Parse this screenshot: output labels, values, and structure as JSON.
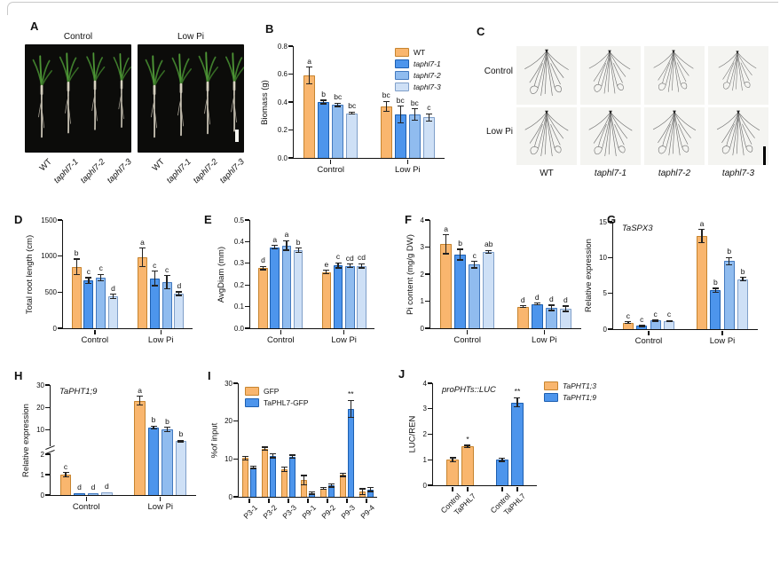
{
  "panels": {
    "a": {
      "label": "A",
      "titles": [
        "Control",
        "Low Pi"
      ],
      "x_labels": [
        "WT",
        "taphl7-1",
        "taphl7-2",
        "taphl7-3"
      ]
    },
    "b": {
      "label": "B"
    },
    "c": {
      "label": "C",
      "row_labels": [
        "Control",
        "Low Pi"
      ],
      "col_labels": [
        "WT",
        "taphl7-1",
        "taphl7-2",
        "taphl7-3"
      ]
    },
    "d": {
      "label": "D"
    },
    "e": {
      "label": "E"
    },
    "f": {
      "label": "F"
    },
    "g": {
      "label": "G"
    },
    "h": {
      "label": "H"
    },
    "i": {
      "label": "I"
    },
    "j": {
      "label": "J"
    }
  },
  "colors": {
    "series": [
      {
        "name": "WT-orange",
        "fill": "#F9B66E",
        "edge": "#C6842F"
      },
      {
        "name": "blue-dark",
        "fill": "#4D95EC",
        "edge": "#1D5FB0"
      },
      {
        "name": "blue-mid",
        "fill": "#90BCEF",
        "edge": "#4379BE"
      },
      {
        "name": "blue-light",
        "fill": "#CEE0F6",
        "edge": "#7F9FC9"
      }
    ],
    "error_bar": "#222222",
    "axis": "#111111",
    "photo_bg": "#0C0C0A",
    "scan_bg": "#F4F4F1"
  },
  "chart_data": [
    {
      "id": "B",
      "type": "bar",
      "title": "",
      "ylabel": "Biomass (g)",
      "ylim": [
        0,
        0.8
      ],
      "yticks": [
        0,
        0.2,
        0.4,
        0.6,
        0.8
      ],
      "ytick_labels": [
        "0.0",
        "0.2",
        "0.4",
        "0.6",
        "0.8"
      ],
      "groups": [
        {
          "label": "Control",
          "bars": [
            {
              "v": 0.59,
              "e": 0.06,
              "t": "a",
              "c": 0
            },
            {
              "v": 0.4,
              "e": 0.012,
              "t": "b",
              "c": 1
            },
            {
              "v": 0.38,
              "e": 0.012,
              "t": "bc",
              "c": 2
            },
            {
              "v": 0.32,
              "e": 0.008,
              "t": "bc",
              "c": 3
            }
          ]
        },
        {
          "label": "Low Pi",
          "bars": [
            {
              "v": 0.37,
              "e": 0.035,
              "t": "bc",
              "c": 0
            },
            {
              "v": 0.31,
              "e": 0.06,
              "t": "bc",
              "c": 1
            },
            {
              "v": 0.31,
              "e": 0.04,
              "t": "bc",
              "c": 2
            },
            {
              "v": 0.29,
              "e": 0.025,
              "t": "c",
              "c": 3
            }
          ]
        }
      ],
      "legend": {
        "entries": [
          {
            "label": "WT",
            "c": 0,
            "italic": false
          },
          {
            "label": "taphl7-1",
            "c": 1,
            "italic": true
          },
          {
            "label": "taphl7-2",
            "c": 2,
            "italic": true
          },
          {
            "label": "taphl7-3",
            "c": 3,
            "italic": true
          }
        ]
      }
    },
    {
      "id": "D",
      "type": "bar",
      "title": "",
      "ylabel": "Total root length (cm)",
      "ylim": [
        0,
        1500
      ],
      "yticks": [
        0,
        500,
        1000,
        1500
      ],
      "ytick_labels": [
        "0",
        "500",
        "1000",
        "1500"
      ],
      "groups": [
        {
          "label": "Control",
          "bars": [
            {
              "v": 850,
              "e": 110,
              "t": "b",
              "c": 0
            },
            {
              "v": 660,
              "e": 40,
              "t": "c",
              "c": 1
            },
            {
              "v": 700,
              "e": 45,
              "t": "c",
              "c": 2
            },
            {
              "v": 440,
              "e": 30,
              "t": "d",
              "c": 3
            }
          ]
        },
        {
          "label": "Low Pi",
          "bars": [
            {
              "v": 980,
              "e": 130,
              "t": "a",
              "c": 0
            },
            {
              "v": 690,
              "e": 100,
              "t": "c",
              "c": 1
            },
            {
              "v": 640,
              "e": 90,
              "t": "c",
              "c": 2
            },
            {
              "v": 480,
              "e": 25,
              "t": "d",
              "c": 3
            }
          ]
        }
      ]
    },
    {
      "id": "E",
      "type": "bar",
      "title": "",
      "ylabel": "AvgDiam (mm)",
      "ylim": [
        0,
        0.5
      ],
      "yticks": [
        0,
        0.1,
        0.2,
        0.3,
        0.4,
        0.5
      ],
      "ytick_labels": [
        "0.0",
        "0.1",
        "0.2",
        "0.3",
        "0.4",
        "0.5"
      ],
      "groups": [
        {
          "label": "Control",
          "bars": [
            {
              "v": 0.278,
              "e": 0.008,
              "t": "d",
              "c": 0
            },
            {
              "v": 0.375,
              "e": 0.008,
              "t": "a",
              "c": 1
            },
            {
              "v": 0.382,
              "e": 0.022,
              "t": "a",
              "c": 2
            },
            {
              "v": 0.36,
              "e": 0.01,
              "t": "b",
              "c": 3
            }
          ]
        },
        {
          "label": "Low Pi",
          "bars": [
            {
              "v": 0.26,
              "e": 0.008,
              "t": "e",
              "c": 0
            },
            {
              "v": 0.29,
              "e": 0.012,
              "t": "c",
              "c": 1
            },
            {
              "v": 0.288,
              "e": 0.008,
              "t": "cd",
              "c": 2
            },
            {
              "v": 0.288,
              "e": 0.01,
              "t": "cd",
              "c": 3
            }
          ]
        }
      ]
    },
    {
      "id": "F",
      "type": "bar",
      "title": "",
      "ylabel": "Pi content (mg/g DW)",
      "ylim": [
        0,
        4
      ],
      "yticks": [
        0,
        1,
        2,
        3,
        4
      ],
      "ytick_labels": [
        "0",
        "1",
        "2",
        "3",
        "4"
      ],
      "groups": [
        {
          "label": "Control",
          "bars": [
            {
              "v": 3.1,
              "e": 0.35,
              "t": "a",
              "c": 0
            },
            {
              "v": 2.72,
              "e": 0.2,
              "t": "b",
              "c": 1
            },
            {
              "v": 2.35,
              "e": 0.12,
              "t": "c",
              "c": 2
            },
            {
              "v": 2.82,
              "e": 0.05,
              "t": "ab",
              "c": 3
            }
          ]
        },
        {
          "label": "Low Pi",
          "bars": [
            {
              "v": 0.8,
              "e": 0.03,
              "t": "d",
              "c": 0
            },
            {
              "v": 0.9,
              "e": 0.03,
              "t": "d",
              "c": 1
            },
            {
              "v": 0.75,
              "e": 0.1,
              "t": "d",
              "c": 2
            },
            {
              "v": 0.72,
              "e": 0.1,
              "t": "d",
              "c": 3
            }
          ]
        }
      ]
    },
    {
      "id": "G",
      "type": "bar",
      "title": "TaSPX3",
      "ylabel": "Relative expression",
      "ylim": [
        0,
        15
      ],
      "yticks": [
        0,
        5,
        10,
        15
      ],
      "ytick_labels": [
        "0",
        "5",
        "10",
        "15"
      ],
      "groups": [
        {
          "label": "Control",
          "bars": [
            {
              "v": 0.9,
              "e": 0.12,
              "t": "c",
              "c": 0
            },
            {
              "v": 0.45,
              "e": 0.08,
              "t": "c",
              "c": 1
            },
            {
              "v": 1.2,
              "e": 0.1,
              "t": "c",
              "c": 2
            },
            {
              "v": 1.1,
              "e": 0.08,
              "t": "c",
              "c": 3
            }
          ]
        },
        {
          "label": "Low Pi",
          "bars": [
            {
              "v": 13.0,
              "e": 0.9,
              "t": "a",
              "c": 0
            },
            {
              "v": 5.4,
              "e": 0.3,
              "t": "b",
              "c": 1
            },
            {
              "v": 9.5,
              "e": 0.5,
              "t": "b",
              "c": 2
            },
            {
              "v": 7.0,
              "e": 0.25,
              "t": "b",
              "c": 3
            }
          ]
        }
      ]
    },
    {
      "id": "H",
      "type": "bar",
      "title": "TaPHT1;9",
      "ylabel": "Relative expression",
      "ylim": [
        0,
        30
      ],
      "yticks": [
        0,
        1,
        2,
        10,
        20,
        30
      ],
      "ytick_labels": [
        "0",
        "1",
        "2",
        "10",
        "20",
        "30"
      ],
      "axis_break": {
        "lower": [
          0,
          2
        ],
        "upper": [
          4,
          30
        ],
        "lower_frac": 0.37,
        "upper_start_frac": 0.47
      },
      "groups": [
        {
          "label": "Control",
          "bars": [
            {
              "v": 1.0,
              "e": 0.1,
              "t": "c",
              "c": 0
            },
            {
              "v": 0.07,
              "e": 0,
              "t": "d",
              "c": 1
            },
            {
              "v": 0.1,
              "e": 0,
              "t": "d",
              "c": 2
            },
            {
              "v": 0.15,
              "e": 0,
              "t": "d",
              "c": 3
            }
          ]
        },
        {
          "label": "Low Pi",
          "bars": [
            {
              "v": 23,
              "e": 2,
              "t": "a",
              "c": 0
            },
            {
              "v": 11,
              "e": 0.7,
              "t": "b",
              "c": 1
            },
            {
              "v": 10.2,
              "e": 1,
              "t": "b",
              "c": 2
            },
            {
              "v": 5,
              "e": 0.3,
              "t": "b",
              "c": 3
            }
          ]
        }
      ]
    },
    {
      "id": "I",
      "type": "bar",
      "title": "",
      "ylabel": "%of input",
      "ylim": [
        0,
        30
      ],
      "yticks": [
        0,
        10,
        20,
        30
      ],
      "ytick_labels": [
        "0",
        "10",
        "20",
        "30"
      ],
      "rotate_xlabels": true,
      "pad": 0.4,
      "gap": 0.55,
      "groups": [
        {
          "label": "P3-1",
          "bars": [
            {
              "v": 10.2,
              "e": 0.5,
              "t": "",
              "c": 0
            },
            {
              "v": 7.8,
              "e": 0.3,
              "t": "",
              "c": 1
            }
          ]
        },
        {
          "label": "P3-2",
          "bars": [
            {
              "v": 12.7,
              "e": 0.4,
              "t": "",
              "c": 0
            },
            {
              "v": 10.8,
              "e": 0.5,
              "t": "",
              "c": 1
            }
          ]
        },
        {
          "label": "P3-3",
          "bars": [
            {
              "v": 7.2,
              "e": 0.6,
              "t": "",
              "c": 0
            },
            {
              "v": 10.6,
              "e": 0.4,
              "t": "",
              "c": 1
            }
          ]
        },
        {
          "label": "P9-1",
          "bars": [
            {
              "v": 4.4,
              "e": 1.2,
              "t": "",
              "c": 0
            },
            {
              "v": 1.0,
              "e": 0.3,
              "t": "",
              "c": 1
            }
          ]
        },
        {
          "label": "P9-2",
          "bars": [
            {
              "v": 2.2,
              "e": 0.2,
              "t": "",
              "c": 0
            },
            {
              "v": 3.0,
              "e": 0.4,
              "t": "",
              "c": 1
            }
          ]
        },
        {
          "label": "P9-3",
          "bars": [
            {
              "v": 5.8,
              "e": 0.4,
              "t": "",
              "c": 0
            },
            {
              "v": 23.2,
              "e": 2.3,
              "t": "**",
              "c": 1
            }
          ]
        },
        {
          "label": "P9-4",
          "bars": [
            {
              "v": 1.3,
              "e": 0.8,
              "t": "",
              "c": 0
            },
            {
              "v": 1.9,
              "e": 0.5,
              "t": "",
              "c": 1
            }
          ]
        }
      ],
      "legend": {
        "entries": [
          {
            "label": "GFP",
            "c": 0,
            "italic": false
          },
          {
            "label": "TaPHL7-GFP",
            "c": 1,
            "italic": false
          }
        ]
      }
    },
    {
      "id": "J",
      "type": "bar",
      "title": "proPHTs::LUC",
      "ylabel": "LUC/REN",
      "ylim": [
        0,
        4
      ],
      "yticks": [
        0,
        1,
        2,
        3,
        4
      ],
      "ytick_labels": [
        "0",
        "1",
        "2",
        "3",
        "4"
      ],
      "rotate_xlabels": true,
      "pad": 0.8,
      "gap": 1.3,
      "groups": [
        {
          "label": "",
          "bars": [
            {
              "v": 1.0,
              "e": 0.08,
              "t": "",
              "c": 0,
              "xl": "Control"
            },
            {
              "v": 1.52,
              "e": 0.04,
              "t": "*",
              "c": 0,
              "xl": "TaPHL7"
            }
          ]
        },
        {
          "label": "",
          "bars": [
            {
              "v": 1.0,
              "e": 0.06,
              "t": "",
              "c": 1,
              "xl": "Control"
            },
            {
              "v": 3.25,
              "e": 0.18,
              "t": "**",
              "c": 1,
              "xl": "TaPHL7"
            }
          ]
        }
      ],
      "legend": {
        "entries": [
          {
            "label": "TaPHT1;3",
            "c": 0,
            "italic": true
          },
          {
            "label": "TaPHT1;9",
            "c": 1,
            "italic": true
          }
        ]
      }
    }
  ]
}
